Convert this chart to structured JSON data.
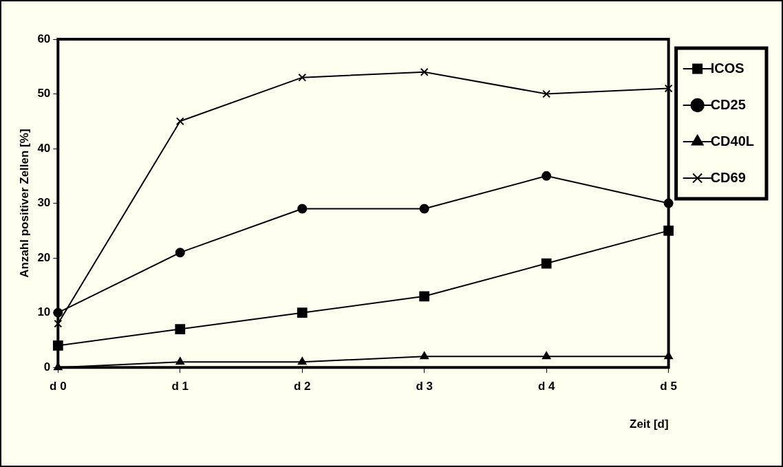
{
  "chart_data": {
    "type": "line",
    "xlabel": "Zeit [d]",
    "ylabel": "Anzahl positiver Zellen [%]",
    "categories": [
      "d 0",
      "d 1",
      "d 2",
      "d 3",
      "d 4",
      "d 5"
    ],
    "series": [
      {
        "name": "ICOS",
        "color": "#000000",
        "marker": "square",
        "values": [
          4,
          7,
          10,
          13,
          19,
          25
        ]
      },
      {
        "name": "CD25",
        "color": "#000000",
        "marker": "circle",
        "values": [
          10,
          21,
          29,
          29,
          35,
          30
        ]
      },
      {
        "name": "CD40L",
        "color": "#000000",
        "marker": "triangle",
        "values": [
          0,
          1,
          1,
          2,
          2,
          2
        ]
      },
      {
        "name": "CD69",
        "color": "#000000",
        "marker": "cross",
        "values": [
          8,
          45,
          53,
          54,
          50,
          51
        ]
      }
    ],
    "ylim": [
      0,
      60
    ],
    "yticks": [
      0,
      10,
      20,
      30,
      40,
      50,
      60
    ],
    "grid": false,
    "legend": "top right",
    "line_style": "solid"
  }
}
